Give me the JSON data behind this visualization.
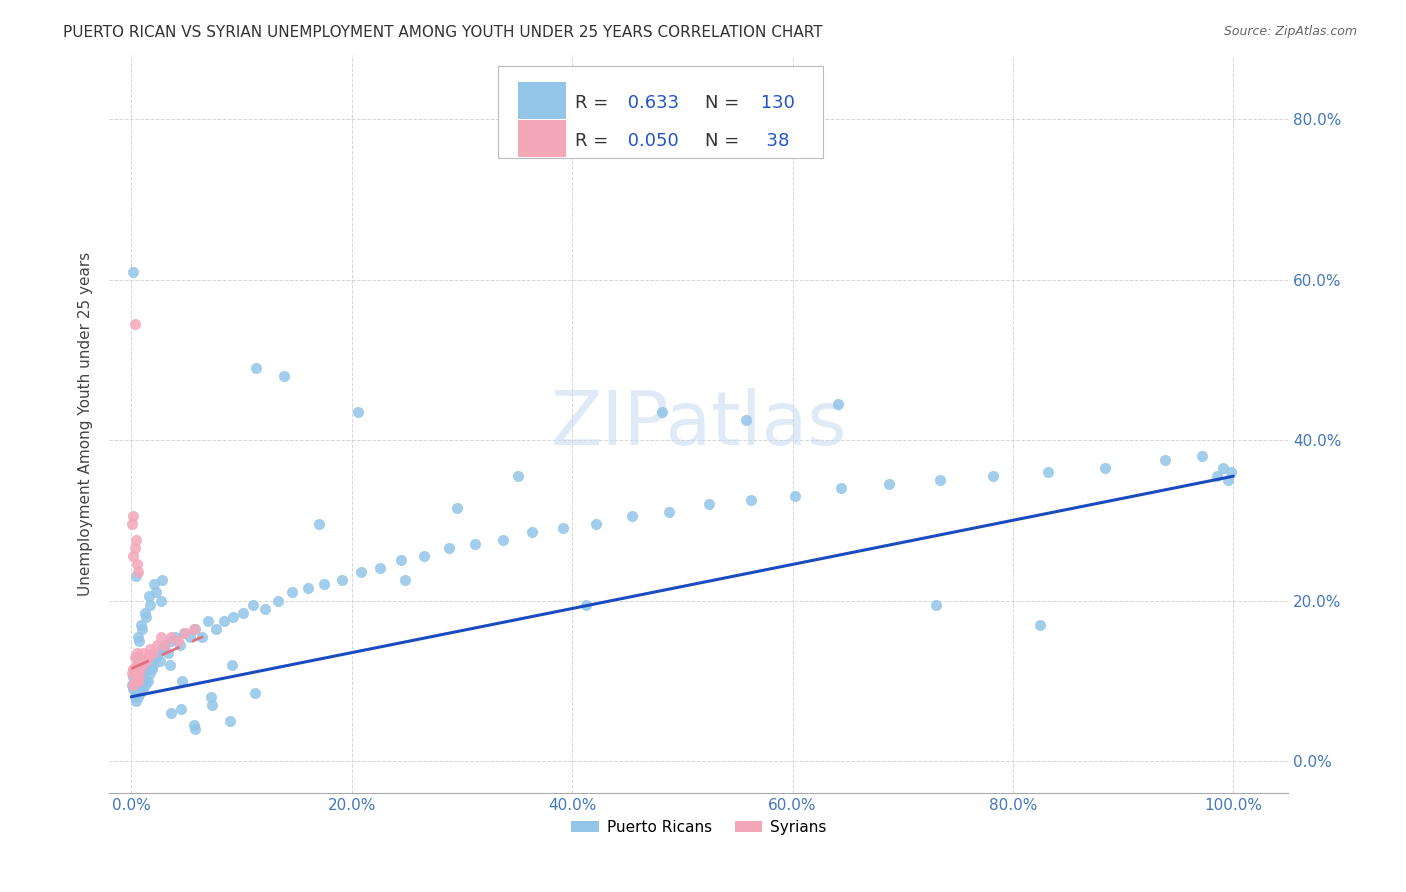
{
  "title": "PUERTO RICAN VS SYRIAN UNEMPLOYMENT AMONG YOUTH UNDER 25 YEARS CORRELATION CHART",
  "source": "Source: ZipAtlas.com",
  "ylabel": "Unemployment Among Youth under 25 years",
  "pr_R": 0.633,
  "pr_N": 130,
  "sy_R": 0.05,
  "sy_N": 38,
  "pr_color": "#92C5E8",
  "sy_color": "#F4A7B9",
  "pr_line_color": "#1A4CC0",
  "sy_line_color": "#E07080",
  "bg_color": "#FFFFFF",
  "xticks": [
    0.0,
    0.2,
    0.4,
    0.6,
    0.8,
    1.0
  ],
  "yticks": [
    0.0,
    0.2,
    0.4,
    0.6,
    0.8
  ],
  "xlim": [
    -0.02,
    1.05
  ],
  "ylim": [
    -0.04,
    0.88
  ],
  "pr_line_x0": 0.0,
  "pr_line_x1": 1.0,
  "pr_line_y0": 0.08,
  "pr_line_y1": 0.355,
  "sy_line_x0": 0.0,
  "sy_line_x1": 0.065,
  "sy_line_y0": 0.115,
  "sy_line_y1": 0.155,
  "pr_x": [
    0.001,
    0.002,
    0.002,
    0.003,
    0.003,
    0.003,
    0.004,
    0.004,
    0.004,
    0.005,
    0.005,
    0.005,
    0.005,
    0.006,
    0.006,
    0.006,
    0.007,
    0.007,
    0.007,
    0.008,
    0.008,
    0.008,
    0.009,
    0.009,
    0.01,
    0.01,
    0.011,
    0.011,
    0.012,
    0.012,
    0.013,
    0.014,
    0.015,
    0.016,
    0.017,
    0.018,
    0.019,
    0.02,
    0.022,
    0.024,
    0.026,
    0.028,
    0.03,
    0.033,
    0.036,
    0.04,
    0.044,
    0.048,
    0.053,
    0.058,
    0.064,
    0.07,
    0.077,
    0.084,
    0.092,
    0.101,
    0.11,
    0.121,
    0.133,
    0.146,
    0.16,
    0.175,
    0.191,
    0.208,
    0.226,
    0.245,
    0.266,
    0.288,
    0.312,
    0.337,
    0.364,
    0.392,
    0.422,
    0.454,
    0.488,
    0.524,
    0.562,
    0.602,
    0.644,
    0.688,
    0.734,
    0.782,
    0.832,
    0.884,
    0.938,
    0.972,
    0.985,
    0.991,
    0.995,
    0.998,
    0.003,
    0.005,
    0.007,
    0.01,
    0.013,
    0.017,
    0.022,
    0.028,
    0.036,
    0.046,
    0.058,
    0.073,
    0.091,
    0.113,
    0.139,
    0.17,
    0.206,
    0.248,
    0.296,
    0.351,
    0.413,
    0.482,
    0.558,
    0.641,
    0.73,
    0.825,
    0.002,
    0.004,
    0.006,
    0.009,
    0.012,
    0.016,
    0.021,
    0.027,
    0.035,
    0.045,
    0.057,
    0.072,
    0.09,
    0.112
  ],
  "pr_y": [
    0.095,
    0.09,
    0.105,
    0.08,
    0.095,
    0.11,
    0.075,
    0.09,
    0.105,
    0.085,
    0.095,
    0.11,
    0.12,
    0.08,
    0.095,
    0.11,
    0.085,
    0.1,
    0.115,
    0.085,
    0.1,
    0.115,
    0.09,
    0.105,
    0.095,
    0.11,
    0.09,
    0.11,
    0.095,
    0.115,
    0.1,
    0.115,
    0.1,
    0.115,
    0.11,
    0.125,
    0.115,
    0.12,
    0.13,
    0.135,
    0.125,
    0.14,
    0.145,
    0.135,
    0.15,
    0.155,
    0.145,
    0.16,
    0.155,
    0.165,
    0.155,
    0.175,
    0.165,
    0.175,
    0.18,
    0.185,
    0.195,
    0.19,
    0.2,
    0.21,
    0.215,
    0.22,
    0.225,
    0.235,
    0.24,
    0.25,
    0.255,
    0.265,
    0.27,
    0.275,
    0.285,
    0.29,
    0.295,
    0.305,
    0.31,
    0.32,
    0.325,
    0.33,
    0.34,
    0.345,
    0.35,
    0.355,
    0.36,
    0.365,
    0.375,
    0.38,
    0.355,
    0.365,
    0.35,
    0.36,
    0.095,
    0.13,
    0.15,
    0.165,
    0.18,
    0.195,
    0.21,
    0.225,
    0.06,
    0.1,
    0.04,
    0.07,
    0.12,
    0.49,
    0.48,
    0.295,
    0.435,
    0.225,
    0.315,
    0.355,
    0.195,
    0.435,
    0.425,
    0.445,
    0.195,
    0.17,
    0.61,
    0.23,
    0.155,
    0.17,
    0.185,
    0.205,
    0.22,
    0.2,
    0.12,
    0.065,
    0.045,
    0.08,
    0.05,
    0.085
  ],
  "sy_x": [
    0.001,
    0.002,
    0.002,
    0.003,
    0.003,
    0.003,
    0.004,
    0.004,
    0.005,
    0.005,
    0.005,
    0.006,
    0.006,
    0.007,
    0.007,
    0.008,
    0.009,
    0.01,
    0.011,
    0.013,
    0.015,
    0.017,
    0.02,
    0.023,
    0.027,
    0.031,
    0.036,
    0.042,
    0.049,
    0.057,
    0.002,
    0.003,
    0.004,
    0.005,
    0.006,
    0.001,
    0.002,
    0.003
  ],
  "sy_y": [
    0.11,
    0.095,
    0.115,
    0.1,
    0.115,
    0.13,
    0.1,
    0.115,
    0.105,
    0.12,
    0.135,
    0.1,
    0.115,
    0.105,
    0.12,
    0.115,
    0.125,
    0.12,
    0.135,
    0.125,
    0.13,
    0.14,
    0.135,
    0.145,
    0.155,
    0.145,
    0.155,
    0.15,
    0.16,
    0.165,
    0.255,
    0.265,
    0.275,
    0.245,
    0.235,
    0.295,
    0.305,
    0.545
  ]
}
